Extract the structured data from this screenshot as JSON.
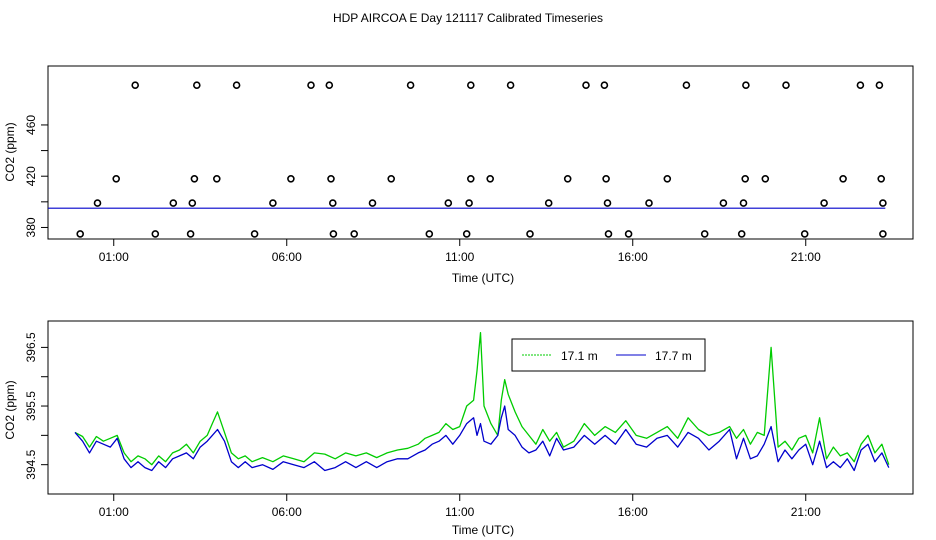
{
  "title": "HDP AIRCOA E  Day 121117  Calibrated Timeseries",
  "colors": {
    "series_green": "#00cc00",
    "series_blue": "#0000cc",
    "axis": "#000000",
    "points": "#000000"
  },
  "chart_data": [
    {
      "type": "scatter",
      "xlabel": "Time (UTC)",
      "ylabel": "CO2 (ppm)",
      "xticks": [
        "01:00",
        "06:00",
        "11:00",
        "16:00",
        "21:00"
      ],
      "xtick_values": [
        1,
        6,
        11,
        16,
        21
      ],
      "yticks": [
        "380",
        "420",
        "460"
      ],
      "ytick_values": [
        380,
        420,
        460
      ],
      "xlim": [
        -0.9,
        24.1
      ],
      "ylim": [
        371,
        506
      ],
      "points": [
        {
          "x": 0.03,
          "y": 375
        },
        {
          "x": 0.53,
          "y": 399
        },
        {
          "x": 1.07,
          "y": 418
        },
        {
          "x": 1.62,
          "y": 491
        },
        {
          "x": 2.2,
          "y": 375
        },
        {
          "x": 2.72,
          "y": 399
        },
        {
          "x": 3.27,
          "y": 399
        },
        {
          "x": 3.22,
          "y": 375
        },
        {
          "x": 3.33,
          "y": 418
        },
        {
          "x": 3.4,
          "y": 491
        },
        {
          "x": 3.98,
          "y": 418
        },
        {
          "x": 4.55,
          "y": 491
        },
        {
          "x": 5.07,
          "y": 375
        },
        {
          "x": 5.6,
          "y": 399
        },
        {
          "x": 6.12,
          "y": 418
        },
        {
          "x": 6.7,
          "y": 491
        },
        {
          "x": 7.23,
          "y": 491
        },
        {
          "x": 7.28,
          "y": 418
        },
        {
          "x": 7.33,
          "y": 399
        },
        {
          "x": 7.35,
          "y": 375
        },
        {
          "x": 7.95,
          "y": 375
        },
        {
          "x": 8.48,
          "y": 399
        },
        {
          "x": 9.02,
          "y": 418
        },
        {
          "x": 9.58,
          "y": 491
        },
        {
          "x": 10.12,
          "y": 375
        },
        {
          "x": 10.67,
          "y": 399
        },
        {
          "x": 11.2,
          "y": 375
        },
        {
          "x": 11.27,
          "y": 399
        },
        {
          "x": 11.32,
          "y": 418
        },
        {
          "x": 11.32,
          "y": 491
        },
        {
          "x": 11.88,
          "y": 418
        },
        {
          "x": 12.47,
          "y": 491
        },
        {
          "x": 13.03,
          "y": 375
        },
        {
          "x": 13.57,
          "y": 399
        },
        {
          "x": 14.12,
          "y": 418
        },
        {
          "x": 14.65,
          "y": 491
        },
        {
          "x": 15.18,
          "y": 491
        },
        {
          "x": 15.23,
          "y": 418
        },
        {
          "x": 15.27,
          "y": 399
        },
        {
          "x": 15.3,
          "y": 375
        },
        {
          "x": 15.88,
          "y": 375
        },
        {
          "x": 16.47,
          "y": 399
        },
        {
          "x": 17.0,
          "y": 418
        },
        {
          "x": 17.55,
          "y": 491
        },
        {
          "x": 18.08,
          "y": 375
        },
        {
          "x": 18.62,
          "y": 399
        },
        {
          "x": 19.15,
          "y": 375
        },
        {
          "x": 19.2,
          "y": 399
        },
        {
          "x": 19.25,
          "y": 418
        },
        {
          "x": 19.27,
          "y": 491
        },
        {
          "x": 19.83,
          "y": 418
        },
        {
          "x": 20.43,
          "y": 491
        },
        {
          "x": 20.97,
          "y": 375
        },
        {
          "x": 21.53,
          "y": 399
        },
        {
          "x": 22.08,
          "y": 418
        },
        {
          "x": 22.58,
          "y": 491
        },
        {
          "x": 23.13,
          "y": 491
        },
        {
          "x": 23.18,
          "y": 418
        },
        {
          "x": 23.23,
          "y": 399
        },
        {
          "x": 23.23,
          "y": 375
        }
      ],
      "lines": [
        {
          "x": [
            -0.9,
            23.3
          ],
          "y": [
            395,
            395
          ],
          "color": "#0000cc"
        }
      ]
    },
    {
      "type": "line",
      "xlabel": "Time (UTC)",
      "ylabel": "CO2 (ppm)",
      "xticks": [
        "01:00",
        "06:00",
        "11:00",
        "16:00",
        "21:00"
      ],
      "xtick_values": [
        1,
        6,
        11,
        16,
        21
      ],
      "yticks": [
        "394.5",
        "395.5",
        "396.5"
      ],
      "ytick_values": [
        394.5,
        395.5,
        396.5
      ],
      "xlim": [
        -0.9,
        24.1
      ],
      "ylim": [
        394.0,
        396.95
      ],
      "legend_position": "top-right",
      "series": [
        {
          "name": "17.1 m",
          "color": "#00cc00",
          "x": [
            -0.12,
            0.1,
            0.3,
            0.5,
            0.7,
            0.9,
            1.1,
            1.3,
            1.5,
            1.7,
            1.9,
            2.1,
            2.3,
            2.5,
            2.7,
            2.9,
            3.1,
            3.3,
            3.5,
            3.7,
            3.85,
            4.0,
            4.2,
            4.4,
            4.6,
            4.8,
            5.0,
            5.3,
            5.6,
            5.9,
            6.2,
            6.5,
            6.8,
            7.1,
            7.4,
            7.7,
            8.0,
            8.3,
            8.6,
            8.9,
            9.2,
            9.5,
            9.8,
            10.0,
            10.2,
            10.4,
            10.6,
            10.8,
            11.0,
            11.2,
            11.4,
            11.5,
            11.6,
            11.7,
            11.9,
            12.1,
            12.2,
            12.3,
            12.4,
            12.6,
            12.8,
            13.0,
            13.2,
            13.4,
            13.6,
            13.8,
            14.0,
            14.3,
            14.6,
            14.9,
            15.2,
            15.5,
            15.8,
            16.1,
            16.4,
            16.7,
            17.0,
            17.3,
            17.6,
            17.9,
            18.2,
            18.5,
            18.8,
            19.0,
            19.2,
            19.4,
            19.6,
            19.8,
            20.0,
            20.2,
            20.4,
            20.6,
            20.8,
            21.0,
            21.2,
            21.4,
            21.6,
            21.8,
            22.0,
            22.2,
            22.4,
            22.6,
            22.8,
            23.0,
            23.2,
            23.4
          ],
          "y": [
            395.05,
            394.98,
            394.8,
            394.98,
            394.9,
            394.95,
            395.0,
            394.7,
            394.55,
            394.65,
            394.6,
            394.5,
            394.65,
            394.55,
            394.7,
            394.75,
            394.85,
            394.7,
            394.9,
            395.0,
            395.2,
            395.4,
            395.05,
            394.7,
            394.6,
            394.65,
            394.55,
            394.62,
            394.55,
            394.65,
            394.6,
            394.55,
            394.7,
            394.68,
            394.6,
            394.7,
            394.65,
            394.7,
            394.62,
            394.7,
            394.75,
            394.78,
            394.85,
            394.95,
            395.0,
            395.05,
            395.2,
            395.1,
            395.15,
            395.5,
            395.6,
            396.1,
            396.75,
            395.5,
            395.2,
            395.0,
            395.6,
            395.95,
            395.7,
            395.4,
            395.15,
            395.0,
            394.85,
            395.1,
            394.9,
            395.05,
            394.8,
            394.9,
            395.2,
            395.0,
            395.15,
            395.05,
            395.25,
            395.0,
            394.95,
            395.05,
            395.15,
            394.95,
            395.3,
            395.1,
            395.0,
            395.05,
            395.15,
            394.95,
            395.1,
            394.85,
            395.05,
            395.0,
            396.5,
            394.8,
            394.9,
            394.75,
            394.95,
            395.0,
            394.7,
            395.3,
            394.6,
            394.8,
            394.65,
            394.7,
            394.55,
            394.85,
            395.0,
            394.7,
            394.85,
            394.5
          ]
        },
        {
          "name": "17.7 m",
          "color": "#0000cc",
          "x": [
            -0.12,
            0.1,
            0.3,
            0.5,
            0.7,
            0.9,
            1.1,
            1.3,
            1.5,
            1.7,
            1.9,
            2.1,
            2.3,
            2.5,
            2.7,
            2.9,
            3.1,
            3.3,
            3.5,
            3.7,
            3.85,
            4.0,
            4.2,
            4.4,
            4.6,
            4.8,
            5.0,
            5.3,
            5.6,
            5.9,
            6.2,
            6.5,
            6.8,
            7.1,
            7.4,
            7.7,
            8.0,
            8.3,
            8.6,
            8.9,
            9.2,
            9.5,
            9.8,
            10.0,
            10.2,
            10.4,
            10.6,
            10.8,
            11.0,
            11.2,
            11.4,
            11.5,
            11.6,
            11.7,
            11.9,
            12.1,
            12.2,
            12.3,
            12.4,
            12.6,
            12.8,
            13.0,
            13.2,
            13.4,
            13.6,
            13.8,
            14.0,
            14.3,
            14.6,
            14.9,
            15.2,
            15.5,
            15.8,
            16.1,
            16.4,
            16.7,
            17.0,
            17.3,
            17.6,
            17.9,
            18.2,
            18.5,
            18.8,
            19.0,
            19.2,
            19.4,
            19.6,
            19.8,
            20.0,
            20.2,
            20.4,
            20.6,
            20.8,
            21.0,
            21.2,
            21.4,
            21.6,
            21.8,
            22.0,
            22.2,
            22.4,
            22.6,
            22.8,
            23.0,
            23.2,
            23.4
          ],
          "y": [
            395.05,
            394.9,
            394.7,
            394.9,
            394.85,
            394.8,
            394.95,
            394.6,
            394.45,
            394.55,
            394.45,
            394.4,
            394.55,
            394.45,
            394.6,
            394.65,
            394.7,
            394.6,
            394.8,
            394.9,
            395.0,
            395.1,
            394.9,
            394.55,
            394.45,
            394.55,
            394.45,
            394.5,
            394.42,
            394.55,
            394.5,
            394.45,
            394.55,
            394.4,
            394.45,
            394.55,
            394.45,
            394.55,
            394.45,
            394.55,
            394.6,
            394.6,
            394.7,
            394.75,
            394.85,
            394.9,
            395.0,
            394.85,
            395.0,
            395.2,
            395.3,
            395.0,
            395.2,
            394.9,
            394.85,
            395.0,
            395.3,
            395.5,
            395.1,
            395.0,
            394.8,
            394.7,
            394.75,
            394.9,
            394.65,
            394.95,
            394.75,
            394.8,
            395.0,
            394.85,
            395.0,
            394.85,
            395.1,
            394.85,
            394.8,
            394.95,
            395.0,
            394.8,
            395.05,
            394.95,
            394.75,
            394.9,
            395.1,
            394.6,
            394.95,
            394.6,
            394.65,
            394.85,
            395.15,
            394.55,
            394.75,
            394.6,
            394.75,
            394.85,
            394.5,
            394.9,
            394.45,
            394.55,
            394.45,
            394.6,
            394.4,
            394.75,
            394.85,
            394.55,
            394.7,
            394.45
          ]
        }
      ]
    }
  ]
}
